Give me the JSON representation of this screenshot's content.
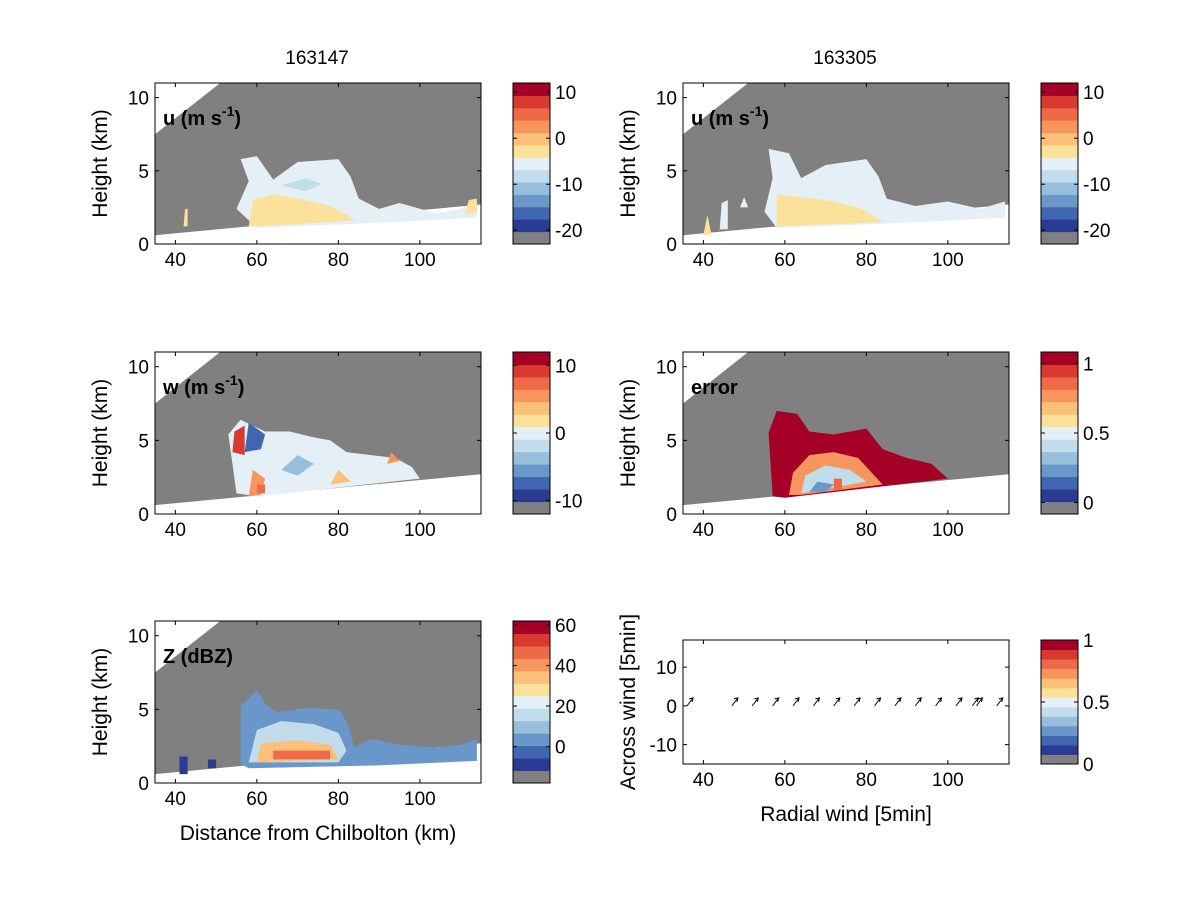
{
  "figure": {
    "column_titles": [
      "163147",
      "163305"
    ],
    "colors": {
      "background_gray": "#808080",
      "frame": "#000000",
      "colormap": [
        "#808080",
        "#2b3b94",
        "#3f67b0",
        "#6a97c9",
        "#97bfdc",
        "#c1dcea",
        "#e4f0f5",
        "#fbe19a",
        "#fbc07a",
        "#f7955f",
        "#ec6a47",
        "#d83a30",
        "#a50026"
      ]
    },
    "arrow_row": {
      "x_values": [
        36,
        47,
        52,
        57,
        62,
        67,
        72,
        77,
        82,
        87,
        92,
        97,
        102,
        106,
        107,
        112
      ],
      "u": [
        1.2,
        1.2,
        1.2,
        1.2,
        1.2,
        1.2,
        1.2,
        1.2,
        1.2,
        1.2,
        1.2,
        1.2,
        1.2,
        1.2,
        1.2,
        1.2
      ],
      "v": [
        1.6,
        1.6,
        1.6,
        1.6,
        1.6,
        1.6,
        1.6,
        1.6,
        1.6,
        1.6,
        1.6,
        1.6,
        1.6,
        1.6,
        1.6,
        1.6
      ]
    }
  },
  "chart_data": [
    {
      "type": "heatmap",
      "title": "u (m s-1)",
      "label_main": "u (m s",
      "label_sup": "-1",
      "label_end": ")",
      "column": "163147",
      "xlabel": "",
      "ylabel": "Height (km)",
      "xlim": [
        35,
        115
      ],
      "ylim": [
        0,
        11
      ],
      "xticks": [
        "40",
        "60",
        "80",
        "100"
      ],
      "yticks": [
        "0",
        "5",
        "10"
      ],
      "colorbar": {
        "range": [
          -23,
          12
        ],
        "ticks": [
          "-20",
          "-10",
          "0",
          "10"
        ],
        "tick_values": [
          -20,
          -10,
          0,
          10
        ]
      }
    },
    {
      "type": "heatmap",
      "title": "u (m s-1)",
      "label_main": "u (m s",
      "label_sup": "-1",
      "label_end": ")",
      "column": "163305",
      "xlabel": "",
      "ylabel": "Height (km)",
      "xlim": [
        35,
        115
      ],
      "ylim": [
        0,
        11
      ],
      "xticks": [
        "40",
        "60",
        "80",
        "100"
      ],
      "yticks": [
        "0",
        "5",
        "10"
      ],
      "colorbar": {
        "range": [
          -23,
          12
        ],
        "ticks": [
          "-20",
          "-10",
          "0",
          "10"
        ],
        "tick_values": [
          -20,
          -10,
          0,
          10
        ]
      }
    },
    {
      "type": "heatmap",
      "title": "w (m s-1)",
      "label_main": "w (m s",
      "label_sup": "-1",
      "label_end": ")",
      "column": "163147",
      "xlabel": "",
      "ylabel": "Height (km)",
      "xlim": [
        35,
        115
      ],
      "ylim": [
        0,
        11
      ],
      "xticks": [
        "40",
        "60",
        "80",
        "100"
      ],
      "yticks": [
        "0",
        "5",
        "10"
      ],
      "colorbar": {
        "range": [
          -12,
          12
        ],
        "ticks": [
          "-10",
          "0",
          "10"
        ],
        "tick_values": [
          -10,
          0,
          10
        ]
      }
    },
    {
      "type": "heatmap",
      "title": "error",
      "label_main": "error",
      "label_sup": "",
      "label_end": "",
      "column": "163305",
      "xlabel": "",
      "ylabel": "Height (km)",
      "xlim": [
        35,
        115
      ],
      "ylim": [
        0,
        11
      ],
      "xticks": [
        "40",
        "60",
        "80",
        "100"
      ],
      "yticks": [
        "0",
        "5",
        "10"
      ],
      "colorbar": {
        "range": [
          -0.083,
          1.083
        ],
        "ticks": [
          "0",
          "0.5",
          "1"
        ],
        "tick_values": [
          0,
          0.5,
          1
        ]
      }
    },
    {
      "type": "heatmap",
      "title": "Z (dBZ)",
      "label_main": "Z (dBZ)",
      "label_sup": "",
      "label_end": "",
      "column": "163147",
      "xlabel": "Distance from Chilbolton (km)",
      "ylabel": "Height (km)",
      "xlim": [
        35,
        115
      ],
      "ylim": [
        0,
        11
      ],
      "xticks": [
        "40",
        "60",
        "80",
        "100"
      ],
      "yticks": [
        "0",
        "5",
        "10"
      ],
      "colorbar": {
        "range": [
          -18,
          62
        ],
        "ticks": [
          "0",
          "20",
          "40",
          "60"
        ],
        "tick_values": [
          0,
          20,
          40,
          60
        ]
      }
    },
    {
      "type": "scatter",
      "title": "",
      "column": "163305",
      "xlabel": "Radial wind [5min]",
      "ylabel": "Across wind [5min]",
      "xlim": [
        35,
        115
      ],
      "ylim": [
        -15,
        17
      ],
      "xticks": [
        "40",
        "60",
        "80",
        "100"
      ],
      "yticks": [
        "-10",
        "0",
        "10"
      ],
      "colorbar": {
        "range": [
          0,
          1
        ],
        "ticks": [
          "0",
          "0.5",
          "1"
        ],
        "tick_values": [
          0,
          0.5,
          1
        ]
      }
    }
  ]
}
